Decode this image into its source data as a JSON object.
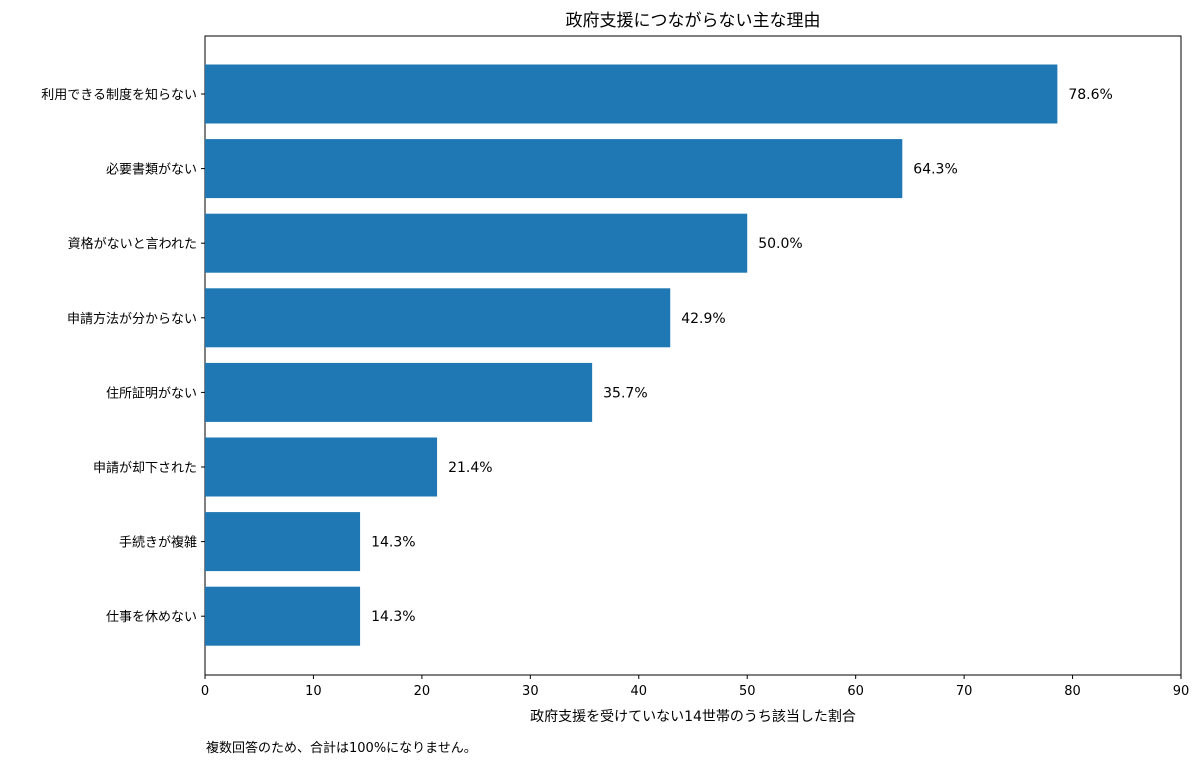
{
  "chart_data": {
    "type": "bar",
    "orientation": "horizontal",
    "title": "政府支援につながらない主な理由",
    "xlabel": "政府支援を受けていない14世帯のうち該当した割合",
    "ylabel": "",
    "xlim": [
      0,
      90
    ],
    "xticks": [
      "0",
      "10",
      "20",
      "30",
      "40",
      "50",
      "60",
      "70",
      "80",
      "90"
    ],
    "grid": false,
    "bar_color": "#1f77b4",
    "categories": [
      "利用できる制度を知らない",
      "必要書類がない",
      "資格がないと言われた",
      "申請方法が分からない",
      "住所証明がない",
      "申請が却下された",
      "手続きが複雑",
      "仕事を休めない"
    ],
    "values": [
      78.6,
      64.3,
      50.0,
      42.9,
      35.7,
      21.4,
      14.3,
      14.3
    ],
    "data_labels": [
      "78.6%",
      "64.3%",
      "50.0%",
      "42.9%",
      "35.7%",
      "21.4%",
      "14.3%",
      "14.3%"
    ]
  },
  "footnote": "複数回答のため、合計は100%になりません。"
}
